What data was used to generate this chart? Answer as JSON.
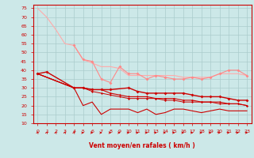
{
  "x": [
    0,
    1,
    2,
    3,
    4,
    5,
    6,
    7,
    8,
    9,
    10,
    11,
    12,
    13,
    14,
    15,
    16,
    17,
    18,
    19,
    20,
    21,
    22,
    23
  ],
  "line1": [
    75,
    70,
    63,
    55,
    54,
    46,
    44,
    42,
    42,
    41,
    37,
    37,
    37,
    37,
    37,
    37,
    36,
    36,
    36,
    36,
    38,
    38,
    38,
    37
  ],
  "line2": [
    null,
    null,
    null,
    null,
    54,
    46,
    45,
    35,
    33,
    42,
    38,
    38,
    35,
    37,
    36,
    35,
    35,
    36,
    35,
    36,
    38,
    40,
    40,
    37
  ],
  "line3": [
    38,
    39,
    null,
    null,
    30,
    30,
    29,
    29,
    29,
    null,
    30,
    28,
    27,
    27,
    27,
    27,
    27,
    26,
    25,
    25,
    25,
    24,
    23,
    23
  ],
  "line4": [
    38,
    null,
    null,
    null,
    30,
    20,
    22,
    15,
    18,
    18,
    18,
    16,
    18,
    15,
    16,
    18,
    18,
    17,
    16,
    17,
    18,
    17,
    17,
    17
  ],
  "line5": [
    38,
    null,
    null,
    null,
    30,
    30,
    29,
    29,
    27,
    26,
    25,
    25,
    25,
    24,
    24,
    24,
    23,
    23,
    22,
    22,
    22,
    21,
    21,
    20
  ],
  "line6": [
    38,
    null,
    null,
    null,
    30,
    30,
    28,
    27,
    26,
    25,
    24,
    24,
    24,
    24,
    23,
    23,
    22,
    22,
    22,
    22,
    21,
    21,
    21,
    20
  ],
  "bg_color": "#cce8e8",
  "grid_color": "#aacccc",
  "line1_color": "#ffaaaa",
  "line2_color": "#ff8888",
  "line3_color": "#cc0000",
  "line4_color": "#cc0000",
  "line5_color": "#cc0000",
  "line6_color": "#cc0000",
  "axis_color": "#cc0000",
  "xlabel": "Vent moyen/en rafales ( km/h )",
  "xlabel_color": "#cc0000",
  "tick_color": "#cc0000",
  "ylim": [
    10,
    77
  ],
  "xlim": [
    -0.5,
    23.5
  ],
  "yticks": [
    10,
    15,
    20,
    25,
    30,
    35,
    40,
    45,
    50,
    55,
    60,
    65,
    70,
    75
  ],
  "xticks": [
    0,
    1,
    2,
    3,
    4,
    5,
    6,
    7,
    8,
    9,
    10,
    11,
    12,
    13,
    14,
    15,
    16,
    17,
    18,
    19,
    20,
    21,
    22,
    23
  ]
}
